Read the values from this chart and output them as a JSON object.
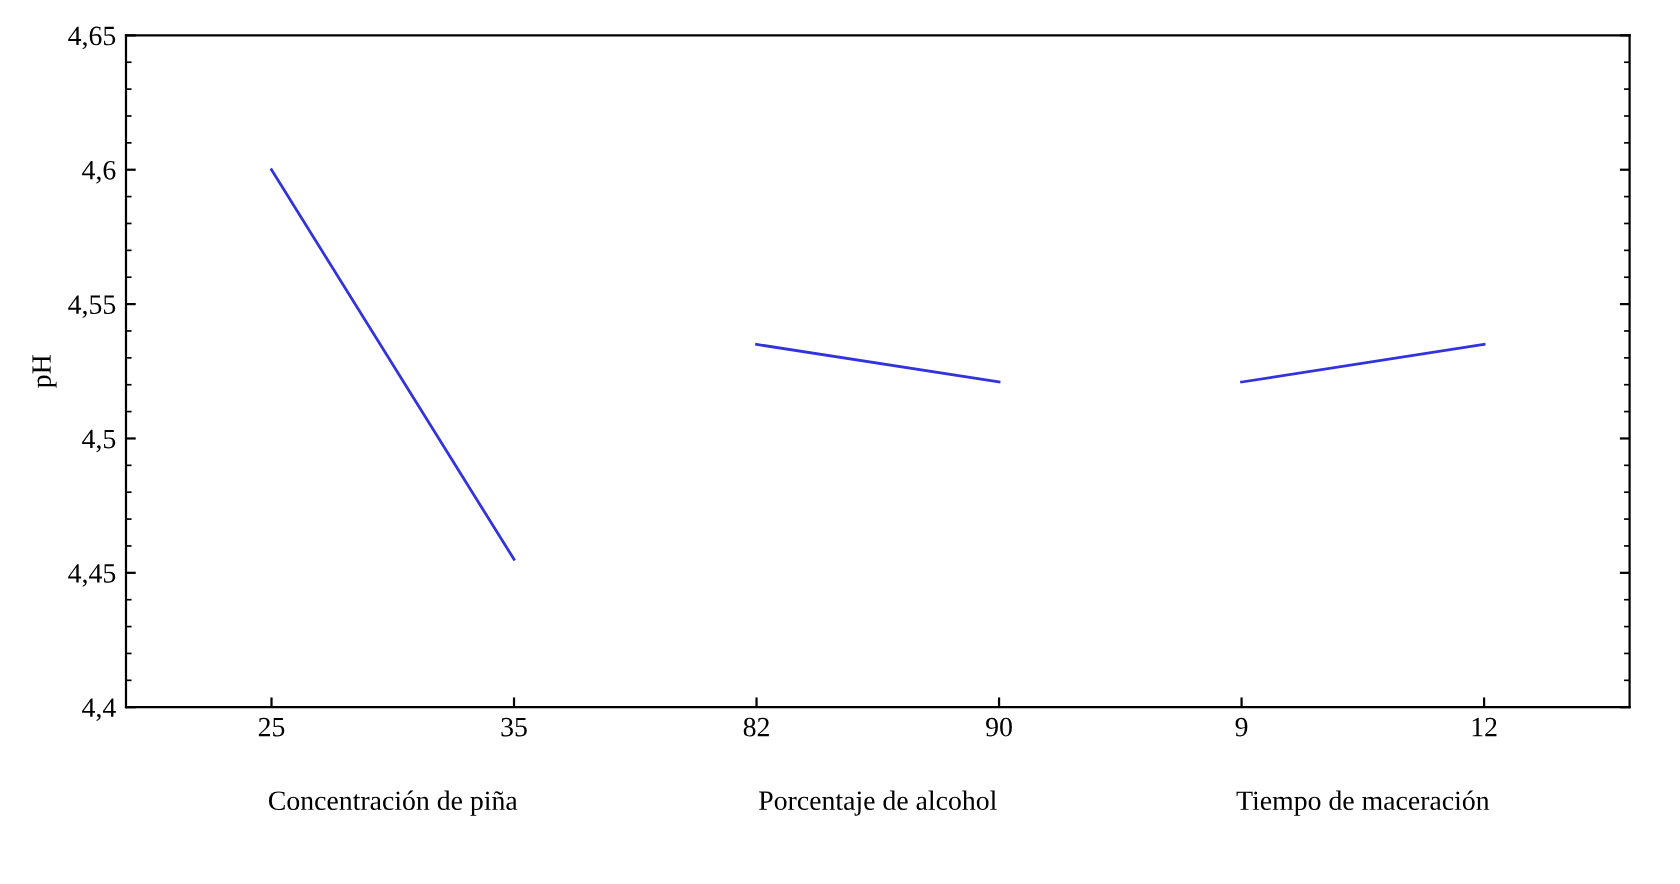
{
  "chart_data": {
    "type": "line",
    "ylabel": "pH",
    "categories": [
      "25",
      "35",
      "82",
      "90",
      "9",
      "12"
    ],
    "series": [
      {
        "color": "#3333dd",
        "values": [
          4.6,
          4.455,
          null,
          null,
          null,
          null
        ]
      },
      {
        "color": "#3333dd",
        "values": [
          null,
          null,
          4.535,
          4.521,
          null,
          null
        ]
      },
      {
        "color": "#3333dd",
        "values": [
          null,
          null,
          null,
          null,
          4.521,
          4.535
        ]
      }
    ],
    "annotations": [
      "Concentración de piña",
      "Porcentaje de alcohol",
      "Tiempo de maceración"
    ],
    "ylim": [
      4.4,
      4.65
    ],
    "yticks": [
      {
        "value": 4.4,
        "label": "4,4"
      },
      {
        "value": 4.45,
        "label": "4,45"
      },
      {
        "value": 4.5,
        "label": "4,5"
      },
      {
        "value": 4.55,
        "label": "4,55"
      },
      {
        "value": 4.6,
        "label": "4,6"
      },
      {
        "value": 4.65,
        "label": "4,65"
      }
    ],
    "grid": false,
    "marker": "none",
    "line_style": "solid"
  }
}
